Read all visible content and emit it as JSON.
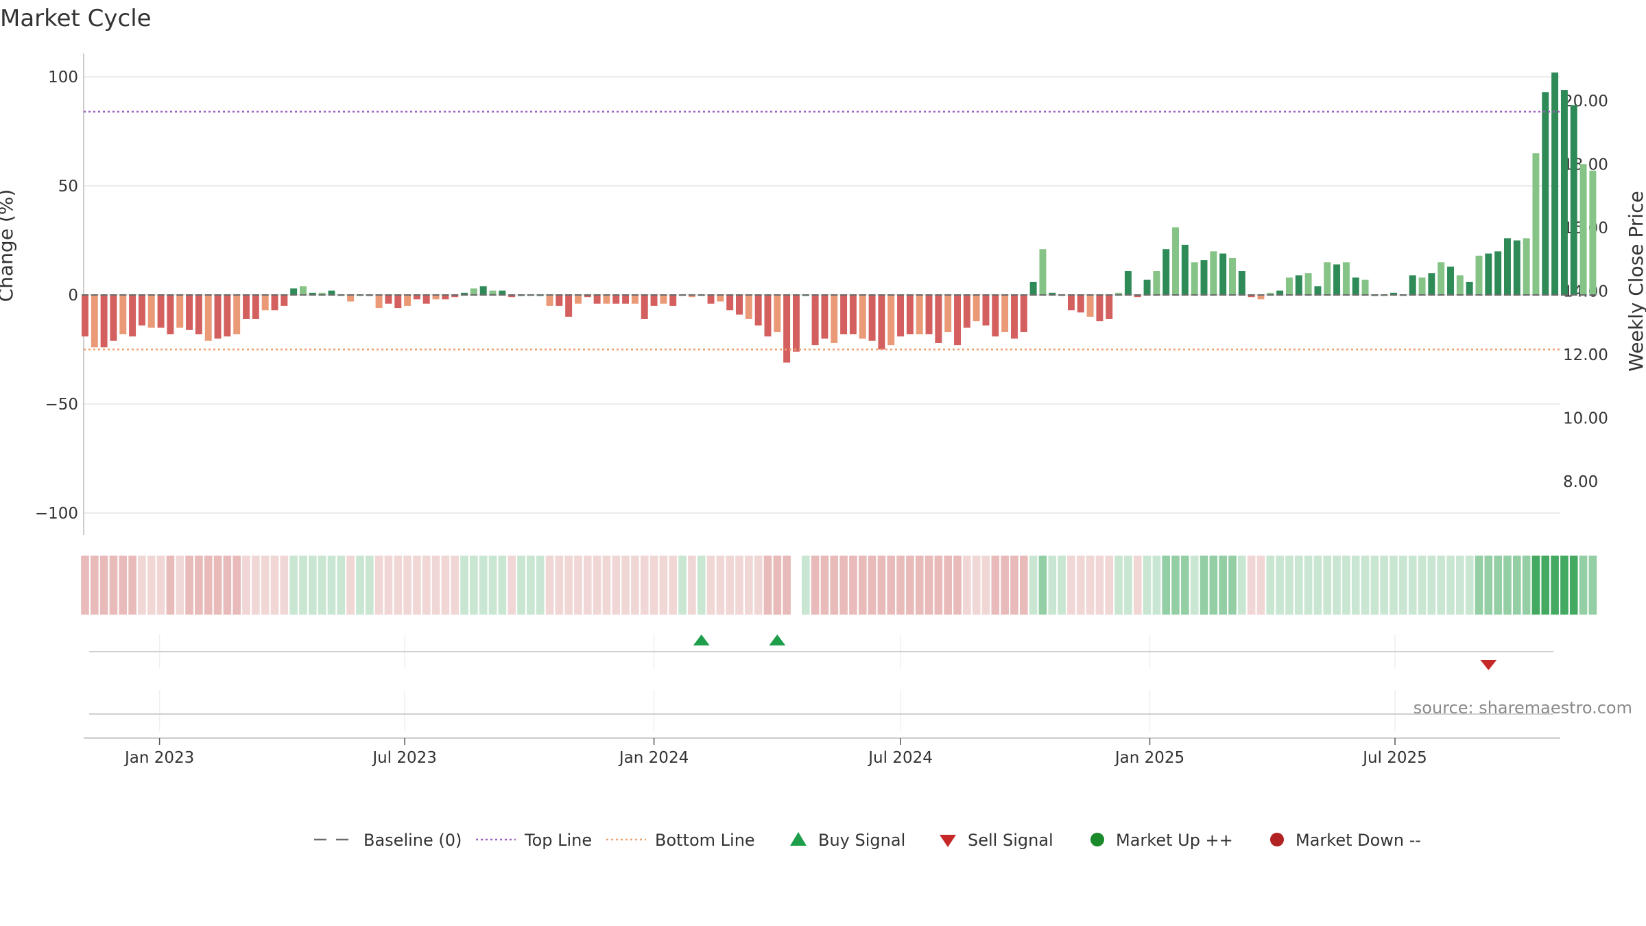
{
  "chart_data": {
    "type": "bar",
    "title": "Market Cycle",
    "ylabel": "Change (%)",
    "y2label": "Weekly Close Price",
    "ylim": [
      -110,
      110
    ],
    "y2lim": [
      6.7,
      21.3
    ],
    "yticks": [
      100,
      50,
      0,
      -50,
      -100
    ],
    "ytick_labels": [
      "100",
      "50",
      "0",
      "−50",
      "−100"
    ],
    "y2ticks": [
      20,
      18,
      16,
      14,
      12,
      10,
      8
    ],
    "y2tick_labels": [
      "20.00",
      "18.00",
      "16.00",
      "14.00",
      "12.00",
      "10.00",
      "8.00"
    ],
    "start_date": "2022-11-07",
    "interval_days": 7,
    "xlim": [
      "2022-11-06",
      "2025-10-31"
    ],
    "xticks": [
      {
        "date": "2023-01-01",
        "label": "Jan 2023"
      },
      {
        "date": "2023-07-01",
        "label": "Jul 2023"
      },
      {
        "date": "2024-01-01",
        "label": "Jan 2024"
      },
      {
        "date": "2024-07-01",
        "label": "Jul 2024"
      },
      {
        "date": "2025-01-01",
        "label": "Jan 2025"
      },
      {
        "date": "2025-07-01",
        "label": "Jul 2025"
      }
    ],
    "values": [
      -19,
      -24,
      -24,
      -21,
      -18,
      -19,
      -14,
      -15,
      -15,
      -18,
      -15,
      -16,
      -18,
      -21,
      -20,
      -19,
      -18,
      -11,
      -11,
      -7,
      -7,
      -5,
      3,
      4,
      1,
      1,
      2,
      0,
      -3,
      0,
      0,
      -6,
      -4,
      -6,
      -5,
      -2,
      -4,
      -2,
      -2,
      -1,
      1,
      3,
      4,
      2,
      2,
      -1,
      0,
      0,
      0,
      -5,
      -5,
      -10,
      -4,
      -1,
      -4,
      -4,
      -4,
      -4,
      -4,
      -11,
      -5,
      -4,
      -5,
      0,
      -1,
      0,
      -4,
      -3,
      -7,
      -9,
      -11,
      -14,
      -19,
      -17,
      -31,
      -26,
      0,
      -23,
      -20,
      -22,
      -18,
      -18,
      -20,
      -21,
      -25,
      -23,
      -19,
      -18,
      -18,
      -18,
      -22,
      -17,
      -23,
      -15,
      -12,
      -14,
      -19,
      -17,
      -20,
      -17,
      6,
      21,
      1,
      0,
      -7,
      -8,
      -10,
      -12,
      -11,
      1,
      11,
      -1,
      7,
      11,
      21,
      31,
      23,
      15,
      16,
      20,
      19,
      17,
      11,
      -1,
      -2,
      1,
      2,
      8,
      9,
      10,
      4,
      15,
      14,
      15,
      8,
      7,
      0,
      0,
      1,
      0,
      9,
      8,
      10,
      15,
      13,
      9,
      6,
      18,
      19,
      20,
      26,
      25,
      26,
      65,
      93,
      102,
      94,
      87,
      60,
      57
    ],
    "bottom_line": -25,
    "top_line": 84,
    "baseline": 0,
    "heatmap_gaps": [
      36,
      75
    ],
    "buy_signals": [
      "2024-02-05",
      "2024-04-01"
    ],
    "sell_signals": [
      "2025-09-08"
    ],
    "legend": {
      "position": "bottom",
      "items": [
        {
          "name": "Baseline (0)",
          "marker": "dashed-line",
          "color": "#6b6b6b"
        },
        {
          "name": "Top Line",
          "marker": "dotted-line",
          "color": "#9b5fc0"
        },
        {
          "name": "Bottom Line",
          "marker": "dotted-line",
          "color": "#f0a070"
        },
        {
          "name": "Buy Signal",
          "marker": "triangle-up",
          "color": "#1e9e4a"
        },
        {
          "name": "Sell Signal",
          "marker": "triangle-down",
          "color": "#c62828"
        },
        {
          "name": "Market Up ++",
          "marker": "circle",
          "color": "#1a8a2a"
        },
        {
          "name": "Market Down --",
          "marker": "circle",
          "color": "#b22222"
        }
      ]
    },
    "colors": {
      "strong_up": "#2e8b57",
      "weak_up": "#86c386",
      "strong_down": "#d45f5f",
      "weak_down": "#eb9a78",
      "grid": "#e6e6e6",
      "axis": "#cccccc"
    },
    "grid": true
  },
  "source": "source: sharemaestro.com"
}
